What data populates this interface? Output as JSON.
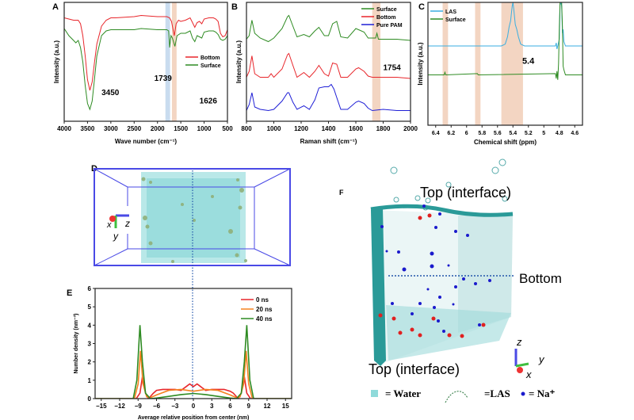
{
  "colors": {
    "red": "#e8262b",
    "green": "#2e8b22",
    "blue": "#1f1fd6",
    "orange": "#f58220",
    "cyan": "#3aaee0",
    "band_orange": "#f3d5c2",
    "band_blue": "#c9dcef",
    "box_blue": "#4a4ae6",
    "water": "#5cc8c8"
  },
  "chart_data": [
    {
      "panel": "A",
      "type": "line",
      "xlabel": "Wave number (cm⁻¹)",
      "ylabel": "Intensity (a.u.)",
      "xlim": [
        4000,
        500
      ],
      "ylim": [
        0,
        1
      ],
      "x_reversed": true,
      "xticks": [
        4000,
        3500,
        3000,
        2500,
        2000,
        1500,
        1000,
        500
      ],
      "legend": "right-middle",
      "bands": [
        {
          "from": 1830,
          "to": 1730,
          "color": "band_blue"
        },
        {
          "from": 1690,
          "to": 1590,
          "color": "band_orange"
        }
      ],
      "annotations": [
        {
          "text": "3450",
          "x": 3200,
          "y": 0.22
        },
        {
          "text": "1739",
          "x": 2070,
          "y": 0.34
        },
        {
          "text": "1626",
          "x": 1100,
          "y": 0.15
        }
      ],
      "series": [
        {
          "name": "Bottom",
          "color": "red",
          "x": [
            4000,
            3900,
            3800,
            3700,
            3650,
            3600,
            3550,
            3500,
            3450,
            3400,
            3350,
            3300,
            3200,
            3100,
            3000,
            2900,
            2500,
            2350,
            2000,
            1800,
            1740,
            1700,
            1660,
            1640,
            1600,
            1550,
            1500,
            1400,
            1300,
            1250,
            1200,
            1150,
            1100,
            1050,
            1000,
            900,
            800,
            750,
            700,
            650,
            600,
            550,
            500
          ],
          "y": [
            0.87,
            0.86,
            0.85,
            0.85,
            0.82,
            0.72,
            0.55,
            0.35,
            0.26,
            0.33,
            0.5,
            0.65,
            0.8,
            0.85,
            0.87,
            0.87,
            0.88,
            0.89,
            0.88,
            0.88,
            0.87,
            0.84,
            0.76,
            0.72,
            0.82,
            0.85,
            0.84,
            0.85,
            0.87,
            0.83,
            0.79,
            0.83,
            0.84,
            0.82,
            0.86,
            0.87,
            0.87,
            0.86,
            0.84,
            0.74,
            0.71,
            0.72,
            0.77
          ]
        },
        {
          "name": "Surface",
          "color": "green",
          "x": [
            4000,
            3900,
            3800,
            3750,
            3700,
            3650,
            3600,
            3550,
            3500,
            3450,
            3400,
            3350,
            3300,
            3200,
            3100,
            3000,
            2900,
            2500,
            2350,
            2000,
            1800,
            1760,
            1739,
            1710,
            1680,
            1626,
            1580,
            1500,
            1400,
            1300,
            1250,
            1200,
            1150,
            1100,
            1050,
            1000,
            900,
            800,
            750,
            700,
            650,
            600,
            550,
            500
          ],
          "y": [
            0.78,
            0.72,
            0.68,
            0.66,
            0.68,
            0.62,
            0.5,
            0.3,
            0.15,
            0.1,
            0.17,
            0.36,
            0.55,
            0.72,
            0.76,
            0.77,
            0.77,
            0.77,
            0.78,
            0.77,
            0.77,
            0.76,
            0.62,
            0.72,
            0.7,
            0.63,
            0.72,
            0.74,
            0.74,
            0.76,
            0.7,
            0.67,
            0.72,
            0.71,
            0.7,
            0.75,
            0.76,
            0.76,
            0.75,
            0.73,
            0.69,
            0.68,
            0.69,
            0.72
          ]
        }
      ]
    },
    {
      "panel": "B",
      "type": "line",
      "xlabel": "Raman shift (cm⁻¹)",
      "ylabel": "Intensity (a.u.)",
      "xlim": [
        800,
        2000
      ],
      "ylim": [
        0,
        1
      ],
      "xticks": [
        800,
        1000,
        1200,
        1400,
        1600,
        1800,
        2000
      ],
      "legend": "top-right",
      "bands": [
        {
          "from": 1720,
          "to": 1780,
          "color": "band_orange"
        }
      ],
      "annotations": [
        {
          "text": "1754",
          "x": 1800,
          "y": 0.43
        }
      ],
      "series": [
        {
          "name": "Surface",
          "color": "green",
          "x": [
            800,
            820,
            840,
            860,
            900,
            960,
            1000,
            1060,
            1100,
            1110,
            1140,
            1170,
            1220,
            1260,
            1300,
            1330,
            1370,
            1400,
            1430,
            1460,
            1490,
            1540,
            1600,
            1620,
            1660,
            1690,
            1720,
            1745,
            1754,
            1765,
            1800,
            1900,
            2000
          ],
          "y": [
            0.69,
            0.72,
            0.85,
            0.74,
            0.7,
            0.67,
            0.7,
            0.78,
            0.88,
            0.89,
            0.8,
            0.71,
            0.73,
            0.71,
            0.76,
            0.79,
            0.72,
            0.72,
            0.82,
            0.84,
            0.71,
            0.7,
            0.78,
            0.77,
            0.75,
            0.7,
            0.7,
            0.7,
            0.74,
            0.69,
            0.69,
            0.69,
            0.68
          ]
        },
        {
          "name": "Bottom",
          "color": "red",
          "x": [
            800,
            820,
            840,
            860,
            900,
            960,
            980,
            1000,
            1060,
            1100,
            1110,
            1140,
            1170,
            1220,
            1260,
            1300,
            1330,
            1370,
            1400,
            1430,
            1460,
            1490,
            1540,
            1600,
            1620,
            1660,
            1690,
            1720,
            1800,
            1900,
            2000
          ],
          "y": [
            0.37,
            0.42,
            0.55,
            0.4,
            0.37,
            0.37,
            0.4,
            0.37,
            0.44,
            0.56,
            0.57,
            0.47,
            0.37,
            0.41,
            0.37,
            0.42,
            0.47,
            0.4,
            0.38,
            0.49,
            0.48,
            0.37,
            0.37,
            0.44,
            0.45,
            0.42,
            0.38,
            0.37,
            0.37,
            0.37,
            0.36
          ]
        },
        {
          "name": "Pure PAM",
          "color": "blue",
          "x": [
            800,
            820,
            840,
            860,
            900,
            960,
            1000,
            1060,
            1100,
            1110,
            1140,
            1170,
            1220,
            1260,
            1300,
            1330,
            1370,
            1400,
            1420,
            1440,
            1460,
            1490,
            1540,
            1600,
            1620,
            1660,
            1690,
            1720,
            1800,
            1900,
            2000
          ],
          "y": [
            0.09,
            0.14,
            0.24,
            0.12,
            0.1,
            0.09,
            0.1,
            0.17,
            0.24,
            0.24,
            0.16,
            0.1,
            0.13,
            0.1,
            0.18,
            0.28,
            0.29,
            0.29,
            0.31,
            0.27,
            0.2,
            0.1,
            0.1,
            0.16,
            0.17,
            0.15,
            0.11,
            0.09,
            0.1,
            0.09,
            0.09
          ]
        }
      ]
    },
    {
      "panel": "C",
      "type": "line",
      "xlabel": "Chemical shift (ppm)",
      "ylabel": "Intensity (a.u.)",
      "xlim": [
        6.5,
        4.5
      ],
      "ylim": [
        0,
        1
      ],
      "x_reversed": true,
      "xticks": [
        6.4,
        6.2,
        6.0,
        5.8,
        5.6,
        5.4,
        5.2,
        5.0,
        4.8,
        4.6
      ],
      "legend": "top-left",
      "bands": [
        {
          "from": 6.31,
          "to": 6.24,
          "color": "band_orange"
        },
        {
          "from": 5.89,
          "to": 5.82,
          "color": "band_orange"
        },
        {
          "from": 5.55,
          "to": 5.27,
          "color": "band_orange"
        }
      ],
      "annotations": [
        {
          "text": "5.4",
          "x": 5.28,
          "y": 0.5
        }
      ],
      "series": [
        {
          "name": "LAS",
          "color": "cyan",
          "x": [
            6.5,
            5.55,
            5.5,
            5.47,
            5.45,
            5.43,
            5.41,
            5.4,
            5.39,
            5.37,
            5.35,
            5.33,
            5.3,
            5.25,
            4.85,
            4.84,
            4.83,
            4.82,
            4.8,
            4.79,
            4.78,
            4.77,
            4.76,
            4.75,
            4.74,
            4.72,
            4.5
          ],
          "y": [
            0.645,
            0.645,
            0.66,
            0.72,
            0.8,
            0.85,
            0.97,
            1.0,
            0.95,
            0.82,
            0.78,
            0.72,
            0.66,
            0.645,
            0.645,
            0.67,
            0.62,
            0.645,
            0.7,
            0.98,
            1.0,
            0.97,
            0.75,
            0.78,
            0.68,
            0.645,
            0.645
          ]
        },
        {
          "name": "Surface",
          "color": "green",
          "x": [
            6.5,
            6.29,
            6.28,
            6.27,
            5.86,
            5.85,
            4.85,
            4.84,
            4.83,
            4.82,
            4.81,
            4.8,
            4.79,
            4.78,
            4.77,
            4.76,
            4.75,
            4.74,
            4.72,
            4.5
          ],
          "y": [
            0.41,
            0.41,
            0.43,
            0.41,
            0.42,
            0.41,
            0.42,
            0.38,
            0.44,
            0.37,
            0.5,
            0.8,
            1.0,
            1.0,
            1.0,
            0.8,
            0.48,
            0.45,
            0.41,
            0.41
          ]
        }
      ]
    },
    {
      "panel": "E",
      "type": "line",
      "xlabel": "Average relative position from center (nm)",
      "ylabel": "Number density (nm⁻³)",
      "xlim": [
        -16,
        16
      ],
      "ylim": [
        0,
        6
      ],
      "xticks": [
        -15,
        -12,
        -9,
        -6,
        -3,
        0,
        3,
        6,
        9,
        12,
        15
      ],
      "yticks": [
        0,
        1,
        2,
        3,
        4,
        5,
        6
      ],
      "legend": "top-right",
      "series": [
        {
          "name": "0 ns",
          "color": "red",
          "x": [
            -16,
            -9.3,
            -8.7,
            -8.3,
            -7.8,
            -7.3,
            -6.5,
            -6,
            -5,
            -4,
            -3,
            -2,
            -1,
            -0.6,
            0,
            0.6,
            1,
            2,
            3,
            4,
            5,
            6,
            6.5,
            7.3,
            7.8,
            8.3,
            8.7,
            9.3,
            16
          ],
          "y": [
            0,
            0,
            0.3,
            1.2,
            0.3,
            0,
            0.3,
            0.45,
            0.5,
            0.5,
            0.5,
            0.45,
            0.7,
            0.8,
            0.65,
            0.8,
            0.7,
            0.45,
            0.5,
            0.5,
            0.5,
            0.4,
            0.3,
            0,
            0.3,
            1.2,
            0.3,
            0,
            0
          ]
        },
        {
          "name": "20 ns",
          "color": "orange",
          "x": [
            -16,
            -9.6,
            -9.0,
            -8.6,
            -8.2,
            -7.6,
            -7,
            -6,
            -4,
            -2,
            0,
            2,
            4,
            6,
            7,
            7.6,
            8.2,
            8.6,
            9.0,
            9.6,
            16
          ],
          "y": [
            0,
            0,
            0.8,
            2.6,
            0.8,
            0.1,
            0.05,
            0.2,
            0.45,
            0.5,
            0.4,
            0.5,
            0.45,
            0.2,
            0.05,
            0.1,
            0.8,
            2.6,
            0.8,
            0,
            0
          ]
        },
        {
          "name": "40 ns",
          "color": "green",
          "x": [
            -16,
            -9.8,
            -9.2,
            -8.7,
            -8.3,
            -7.8,
            -7,
            -6,
            -4,
            -2,
            0,
            2,
            4,
            6,
            7,
            7.8,
            8.3,
            8.7,
            9.2,
            9.8,
            16
          ],
          "y": [
            0,
            0,
            1.0,
            4.0,
            2.0,
            0.3,
            0,
            0.03,
            0.12,
            0.22,
            0.28,
            0.22,
            0.12,
            0.03,
            0,
            0.3,
            2.0,
            4.0,
            1.0,
            0,
            0
          ]
        }
      ]
    }
  ],
  "panel_d": {
    "label": "D",
    "axis_x": "x",
    "axis_y": "y",
    "axis_z": "z"
  },
  "panel_f": {
    "label": "F",
    "top_label": "Top (interface)",
    "bottom_label": "Bottom",
    "top_label_lower": "Top (interface)",
    "axis_x": "x",
    "axis_y": "y",
    "axis_z": "z",
    "legend_water": "= Water",
    "legend_las": "=LAS",
    "legend_na": "= Na⁺"
  }
}
